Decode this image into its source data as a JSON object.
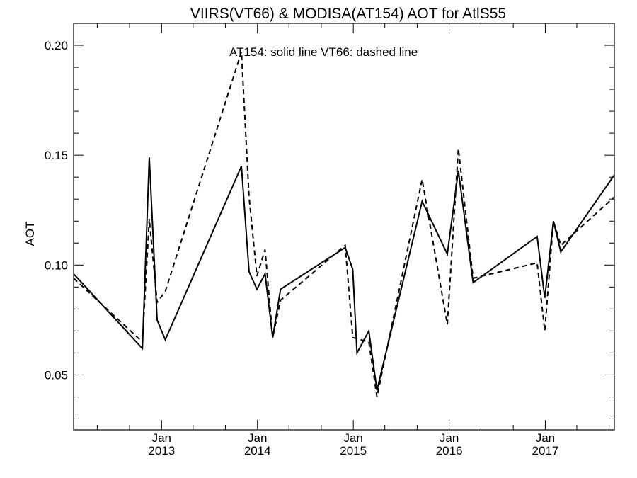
{
  "chart_data": {
    "type": "line",
    "title": "VIIRS(VT66) & MODISA(AT154)  AOT for AtlS55",
    "xlabel": "",
    "ylabel": "AOT",
    "annotation": "AT154: solid line   VT66: dashed line",
    "xlim": [
      "2012-02-01",
      "2017-09-21"
    ],
    "ylim": [
      0.025,
      0.21
    ],
    "yticks": [
      {
        "value": 0.05,
        "label": "0.05"
      },
      {
        "value": 0.1,
        "label": "0.10"
      },
      {
        "value": 0.15,
        "label": "0.15"
      },
      {
        "value": 0.2,
        "label": "0.20"
      }
    ],
    "xticks": [
      {
        "date": "2013-01-01",
        "month": "Jan",
        "year": "2013"
      },
      {
        "date": "2014-01-01",
        "month": "Jan",
        "year": "2014"
      },
      {
        "date": "2015-01-01",
        "month": "Jan",
        "year": "2015"
      },
      {
        "date": "2016-01-01",
        "month": "Jan",
        "year": "2016"
      },
      {
        "date": "2017-01-01",
        "month": "Jan",
        "year": "2017"
      }
    ],
    "grid": false,
    "series": [
      {
        "name": "AT154",
        "style": "solid",
        "color": "#000000",
        "points": [
          [
            "2012-02-01",
            0.096
          ],
          [
            "2012-10-20",
            0.062
          ],
          [
            "2012-11-15",
            0.149
          ],
          [
            "2012-12-15",
            0.075
          ],
          [
            "2013-01-15",
            0.066
          ],
          [
            "2013-11-01",
            0.145
          ],
          [
            "2013-11-30",
            0.097
          ],
          [
            "2013-12-30",
            0.089
          ],
          [
            "2014-01-30",
            0.096
          ],
          [
            "2014-02-28",
            0.067
          ],
          [
            "2014-03-30",
            0.089
          ],
          [
            "2014-12-01",
            0.108
          ],
          [
            "2014-12-30",
            0.098
          ],
          [
            "2015-01-15",
            0.06
          ],
          [
            "2015-03-01",
            0.07
          ],
          [
            "2015-04-01",
            0.043
          ],
          [
            "2015-09-20",
            0.129
          ],
          [
            "2015-12-25",
            0.105
          ],
          [
            "2016-02-05",
            0.143
          ],
          [
            "2016-04-01",
            0.092
          ],
          [
            "2016-12-01",
            0.113
          ],
          [
            "2016-12-30",
            0.085
          ],
          [
            "2017-02-01",
            0.12
          ],
          [
            "2017-03-01",
            0.106
          ],
          [
            "2017-09-21",
            0.141
          ]
        ]
      },
      {
        "name": "VT66",
        "style": "dashed",
        "color": "#000000",
        "points": [
          [
            "2012-02-01",
            0.094
          ],
          [
            "2012-10-20",
            0.065
          ],
          [
            "2012-11-15",
            0.121
          ],
          [
            "2012-12-15",
            0.083
          ],
          [
            "2013-01-15",
            0.088
          ],
          [
            "2013-11-01",
            0.197
          ],
          [
            "2013-11-30",
            0.131
          ],
          [
            "2013-12-30",
            0.095
          ],
          [
            "2014-01-30",
            0.107
          ],
          [
            "2014-02-28",
            0.067
          ],
          [
            "2014-03-30",
            0.084
          ],
          [
            "2014-12-01",
            0.109
          ],
          [
            "2014-12-30",
            0.067
          ],
          [
            "2015-03-01",
            0.065
          ],
          [
            "2015-04-01",
            0.04
          ],
          [
            "2015-09-20",
            0.139
          ],
          [
            "2015-12-25",
            0.073
          ],
          [
            "2016-02-05",
            0.153
          ],
          [
            "2016-04-01",
            0.094
          ],
          [
            "2016-12-01",
            0.101
          ],
          [
            "2016-12-30",
            0.07
          ],
          [
            "2017-02-01",
            0.12
          ],
          [
            "2017-03-01",
            0.109
          ],
          [
            "2017-09-21",
            0.131
          ]
        ]
      }
    ]
  }
}
